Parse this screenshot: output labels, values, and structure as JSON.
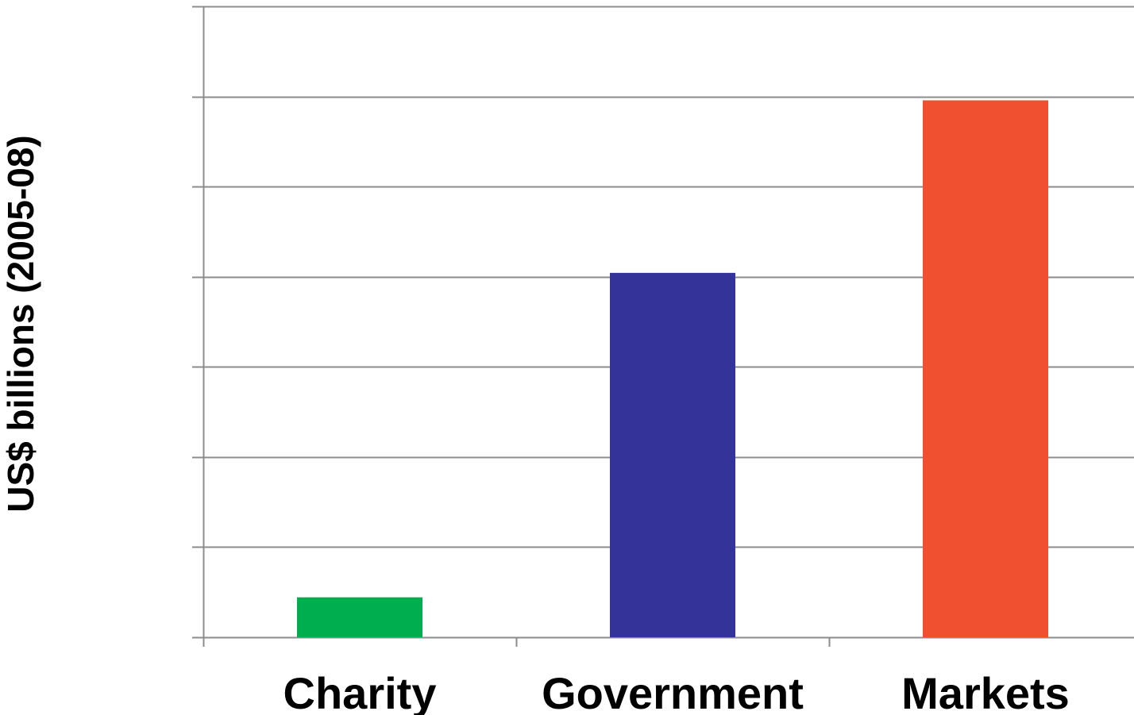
{
  "chart_data": {
    "type": "bar",
    "title": "",
    "xlabel": "",
    "ylabel": "US$ billions (2005-08)",
    "categories": [
      "Charity",
      "Government",
      "Markets"
    ],
    "values": [
      3.1,
      28.3,
      41.7
    ],
    "colors": [
      "#00AE50",
      "#343399",
      "#F15030"
    ],
    "ylim": [
      0,
      49
    ],
    "y_gridline_step": 7,
    "y_tick_labels_shown": false,
    "grid": true,
    "legend": "none"
  }
}
